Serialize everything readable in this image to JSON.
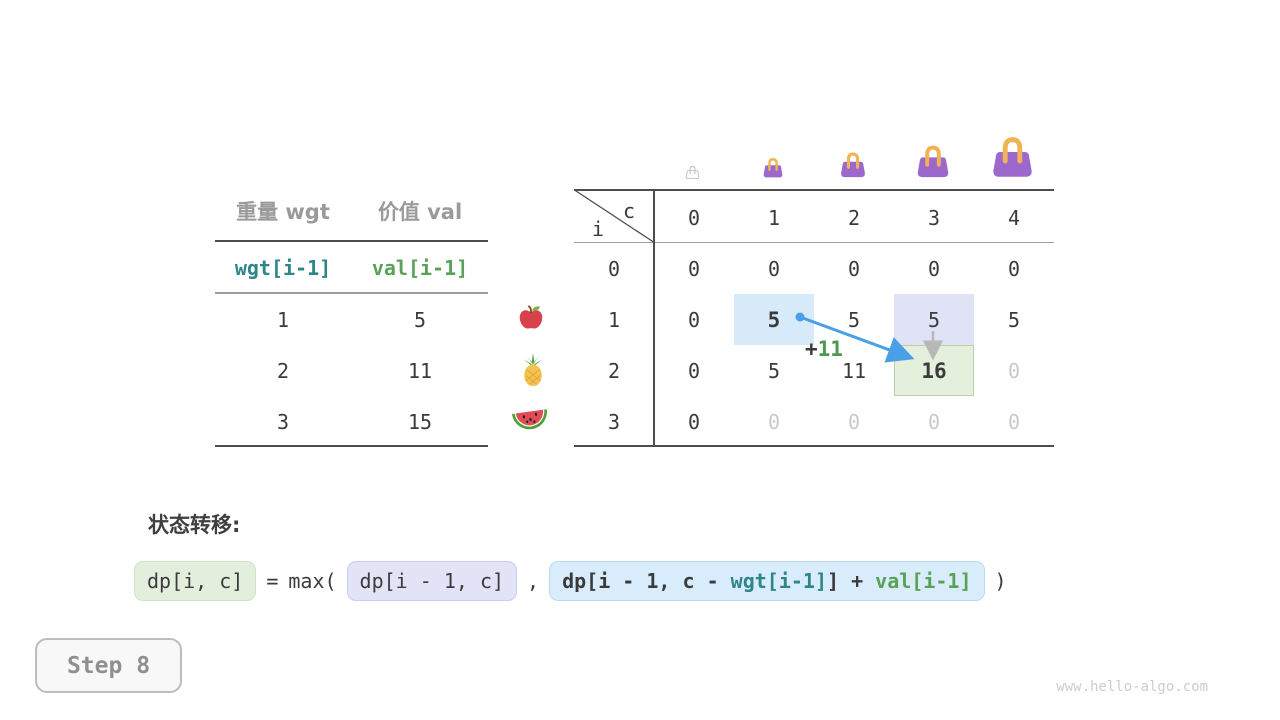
{
  "items_table": {
    "headers": [
      "重量 wgt",
      "价值 val"
    ],
    "sub_headers": [
      "wgt[i-1]",
      "val[i-1]"
    ],
    "rows": [
      {
        "wgt": "1",
        "val": "5",
        "icon": "apple-icon"
      },
      {
        "wgt": "2",
        "val": "11",
        "icon": "pineapple-icon"
      },
      {
        "wgt": "3",
        "val": "15",
        "icon": "watermelon-icon"
      }
    ]
  },
  "dp_table": {
    "corner_row_label": "i",
    "corner_col_label": "c",
    "col_headers": [
      "0",
      "1",
      "2",
      "3",
      "4"
    ],
    "row_headers": [
      "0",
      "1",
      "2",
      "3"
    ],
    "cells": [
      [
        {
          "v": "0",
          "cls": ""
        },
        {
          "v": "0",
          "cls": ""
        },
        {
          "v": "0",
          "cls": ""
        },
        {
          "v": "0",
          "cls": ""
        },
        {
          "v": "0",
          "cls": ""
        }
      ],
      [
        {
          "v": "0",
          "cls": ""
        },
        {
          "v": "5",
          "cls": "bold hl-blue"
        },
        {
          "v": "5",
          "cls": ""
        },
        {
          "v": "5",
          "cls": "hl-lav"
        },
        {
          "v": "5",
          "cls": ""
        }
      ],
      [
        {
          "v": "0",
          "cls": ""
        },
        {
          "v": "5",
          "cls": ""
        },
        {
          "v": "11",
          "cls": ""
        },
        {
          "v": "16",
          "cls": "bold hl-green"
        },
        {
          "v": "0",
          "cls": "muted"
        }
      ],
      [
        {
          "v": "0",
          "cls": ""
        },
        {
          "v": "0",
          "cls": "muted"
        },
        {
          "v": "0",
          "cls": "muted"
        },
        {
          "v": "0",
          "cls": "muted"
        },
        {
          "v": "0",
          "cls": "muted"
        }
      ]
    ],
    "annotation_plus": "+",
    "annotation_value": "11",
    "capacity_icons": [
      "handbag-outline-icon",
      "handbag-icon",
      "handbag-icon",
      "handbag-icon",
      "handbag-icon"
    ]
  },
  "transition": {
    "label": "状态转移:",
    "lhs": "dp[i, c]",
    "eq": "=",
    "max_open": "max(",
    "arg1": "dp[i - 1, c]",
    "comma": ",",
    "arg2_head": "dp[i - 1, c - ",
    "arg2_wgt": "wgt[i-1]",
    "arg2_mid": "] + ",
    "arg2_val": "val[i-1]",
    "close": ")"
  },
  "footer": {
    "step_label": "Step 8",
    "watermark": "www.hello-algo.com"
  },
  "colors": {
    "arrow_blue": "#4aa0e8",
    "arrow_gray": "#b8b8b8",
    "highlight_blue": "#d7eafa",
    "highlight_lavender": "#e0e2f6",
    "highlight_green": "#e4efdc",
    "code_teal": "#2f8688",
    "code_green": "#57a257",
    "bag_purple": "#9d68cc",
    "bag_handle_orange": "#f0b356"
  }
}
